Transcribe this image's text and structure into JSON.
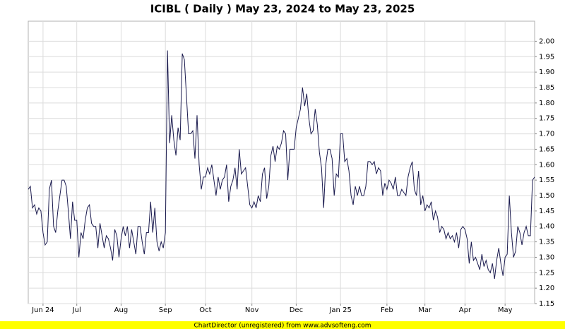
{
  "chart_data": {
    "type": "line",
    "title": "ICIBL ( Daily ) May 23, 2024 to May 23, 2025",
    "footer": "ChartDirector (unregistered) from www.advsofteng.com",
    "color": "#1a1a4e",
    "grid": true,
    "xlim": [
      0,
      240
    ],
    "xticks": [
      {
        "value": 7,
        "label": "Jun 24"
      },
      {
        "value": 23,
        "label": "Jul"
      },
      {
        "value": 44,
        "label": "Aug"
      },
      {
        "value": 65,
        "label": "Sep"
      },
      {
        "value": 84,
        "label": "Oct"
      },
      {
        "value": 106,
        "label": "Nov"
      },
      {
        "value": 127,
        "label": "Dec"
      },
      {
        "value": 148,
        "label": "Jan 25"
      },
      {
        "value": 170,
        "label": "Feb"
      },
      {
        "value": 188,
        "label": "Mar"
      },
      {
        "value": 207,
        "label": "Apr"
      },
      {
        "value": 226,
        "label": "May"
      }
    ],
    "ylim": [
      1.15,
      2.065
    ],
    "yticks": [
      1.15,
      {
        "value": 1.2,
        "label": "1.20"
      },
      1.25,
      {
        "value": 1.3,
        "label": "1.30"
      },
      1.35,
      {
        "value": 1.4,
        "label": "1.40"
      },
      1.45,
      {
        "value": 1.5,
        "label": "1.50"
      },
      1.55,
      {
        "value": 1.6,
        "label": "1.60"
      },
      1.65,
      {
        "value": 1.7,
        "label": "1.70"
      },
      1.75,
      {
        "value": 1.8,
        "label": "1.80"
      },
      1.85,
      {
        "value": 1.9,
        "label": "1.90"
      },
      1.95,
      {
        "value": 2.0,
        "label": "2.00"
      }
    ],
    "values": [
      1.52,
      1.53,
      1.46,
      1.47,
      1.44,
      1.46,
      1.45,
      1.38,
      1.34,
      1.35,
      1.52,
      1.55,
      1.4,
      1.38,
      1.45,
      1.5,
      1.55,
      1.55,
      1.53,
      1.45,
      1.36,
      1.48,
      1.42,
      1.42,
      1.3,
      1.38,
      1.36,
      1.42,
      1.46,
      1.47,
      1.41,
      1.4,
      1.4,
      1.33,
      1.41,
      1.37,
      1.33,
      1.37,
      1.36,
      1.33,
      1.29,
      1.39,
      1.37,
      1.3,
      1.36,
      1.4,
      1.37,
      1.4,
      1.33,
      1.39,
      1.35,
      1.31,
      1.4,
      1.4,
      1.35,
      1.31,
      1.38,
      1.38,
      1.48,
      1.38,
      1.46,
      1.35,
      1.32,
      1.35,
      1.33,
      1.38,
      1.97,
      1.67,
      1.76,
      1.68,
      1.63,
      1.72,
      1.68,
      1.96,
      1.94,
      1.82,
      1.7,
      1.7,
      1.71,
      1.62,
      1.76,
      1.6,
      1.52,
      1.56,
      1.56,
      1.59,
      1.57,
      1.6,
      1.55,
      1.5,
      1.56,
      1.52,
      1.55,
      1.56,
      1.6,
      1.48,
      1.53,
      1.55,
      1.59,
      1.52,
      1.65,
      1.57,
      1.58,
      1.59,
      1.53,
      1.47,
      1.46,
      1.48,
      1.46,
      1.5,
      1.48,
      1.57,
      1.59,
      1.49,
      1.53,
      1.63,
      1.66,
      1.61,
      1.66,
      1.65,
      1.67,
      1.71,
      1.7,
      1.55,
      1.65,
      1.65,
      1.65,
      1.72,
      1.75,
      1.78,
      1.85,
      1.79,
      1.83,
      1.75,
      1.7,
      1.71,
      1.78,
      1.73,
      1.64,
      1.59,
      1.46,
      1.6,
      1.65,
      1.65,
      1.62,
      1.5,
      1.57,
      1.56,
      1.7,
      1.7,
      1.61,
      1.62,
      1.58,
      1.5,
      1.47,
      1.53,
      1.5,
      1.53,
      1.5,
      1.5,
      1.53,
      1.61,
      1.61,
      1.6,
      1.61,
      1.57,
      1.59,
      1.58,
      1.5,
      1.54,
      1.52,
      1.55,
      1.54,
      1.52,
      1.56,
      1.5,
      1.5,
      1.52,
      1.51,
      1.5,
      1.56,
      1.59,
      1.61,
      1.52,
      1.5,
      1.58,
      1.47,
      1.5,
      1.45,
      1.47,
      1.46,
      1.48,
      1.42,
      1.45,
      1.43,
      1.38,
      1.4,
      1.39,
      1.36,
      1.38,
      1.36,
      1.37,
      1.35,
      1.38,
      1.33,
      1.39,
      1.4,
      1.39,
      1.36,
      1.28,
      1.35,
      1.29,
      1.3,
      1.28,
      1.26,
      1.31,
      1.27,
      1.29,
      1.26,
      1.25,
      1.28,
      1.23,
      1.29,
      1.33,
      1.28,
      1.24,
      1.3,
      1.31,
      1.5,
      1.38,
      1.3,
      1.32,
      1.4,
      1.38,
      1.34,
      1.38,
      1.4,
      1.37,
      1.37,
      1.55,
      1.56
    ]
  }
}
